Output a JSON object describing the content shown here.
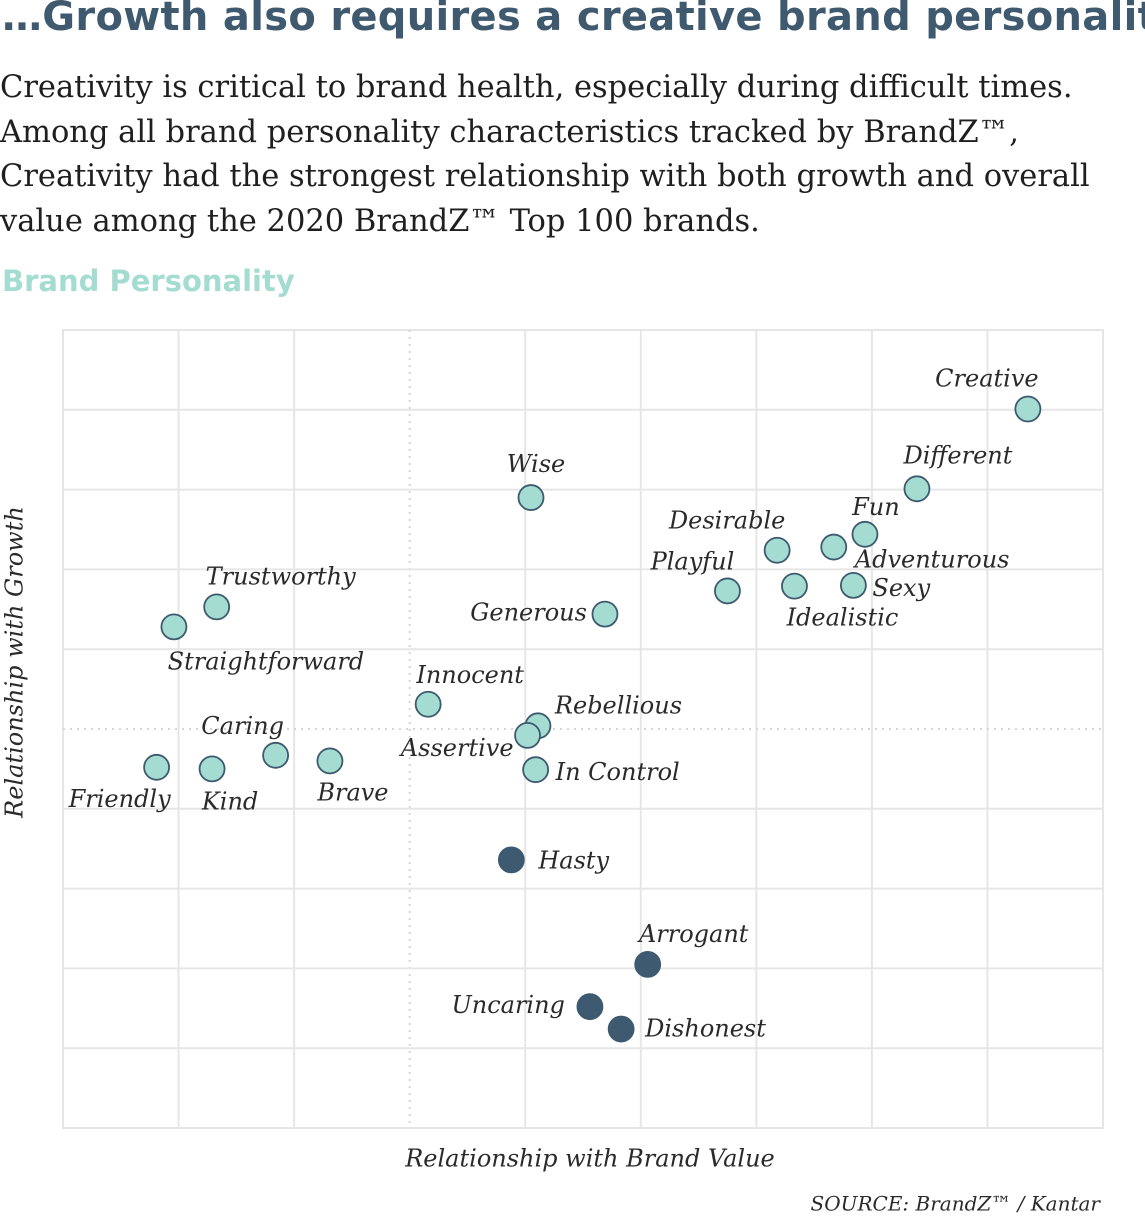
{
  "chart_data": {
    "type": "scatter",
    "title": "…Growth also requires a creative brand personality",
    "description": [
      "Creativity is critical to brand health, especially during difficult times.",
      "Among all brand personality characteristics tracked by BrandZ™,",
      "Creativity had the strongest relationship with both growth and overall",
      "value among the 2020 BrandZ™ Top 100 brands."
    ],
    "subtitle": "Brand Personality",
    "x_label": "Relationship with Brand Value",
    "y_label": "Relationship with Growth",
    "source": "SOURCE: BrandZ™ / Kantar",
    "labels": [
      "Creative",
      "Different",
      "Fun",
      "Adventurous",
      "Desirable",
      "Sexy",
      "Idealistic",
      "Playful",
      "Wise",
      "Generous",
      "Trustworthy",
      "Straightforward",
      "Innocent",
      "Rebellious",
      "Assertive",
      "In Control",
      "Caring",
      "Friendly",
      "Kind",
      "Brave",
      "Hasty",
      "Arrogant",
      "Uncaring",
      "Dishonest"
    ],
    "x": [
      5.35,
      4.39,
      3.94,
      3.67,
      3.18,
      3.84,
      3.33,
      2.75,
      1.05,
      1.69,
      -1.67,
      -2.04,
      0.16,
      1.11,
      1.02,
      1.09,
      -1.16,
      -2.19,
      -1.71,
      -0.69,
      0.88,
      2.06,
      1.56,
      1.83
    ],
    "y": [
      4.01,
      3.01,
      2.44,
      2.28,
      2.24,
      1.8,
      1.79,
      1.73,
      2.9,
      1.44,
      1.53,
      1.28,
      0.31,
      0.04,
      -0.08,
      -0.51,
      -0.33,
      -0.48,
      -0.5,
      -0.4,
      -1.64,
      -2.95,
      -3.48,
      -3.76
    ],
    "colors": [
      "#a4dcd1",
      "#a4dcd1",
      "#a4dcd1",
      "#a4dcd1",
      "#a4dcd1",
      "#a4dcd1",
      "#a4dcd1",
      "#a4dcd1",
      "#a4dcd1",
      "#a4dcd1",
      "#a4dcd1",
      "#a4dcd1",
      "#a4dcd1",
      "#a4dcd1",
      "#a4dcd1",
      "#a4dcd1",
      "#a4dcd1",
      "#a4dcd1",
      "#a4dcd1",
      "#a4dcd1",
      "#3d5a70",
      "#3d5a70",
      "#3d5a70",
      "#3d5a70"
    ],
    "xlim": [
      -3,
      6
    ],
    "ylim": [
      -5,
      5
    ],
    "xticks": [
      -2,
      -1,
      0,
      1,
      2,
      3,
      4,
      5
    ],
    "yticks": [
      -4,
      -3,
      -2,
      -1,
      0,
      1,
      2,
      3,
      4
    ],
    "grid": true
  }
}
